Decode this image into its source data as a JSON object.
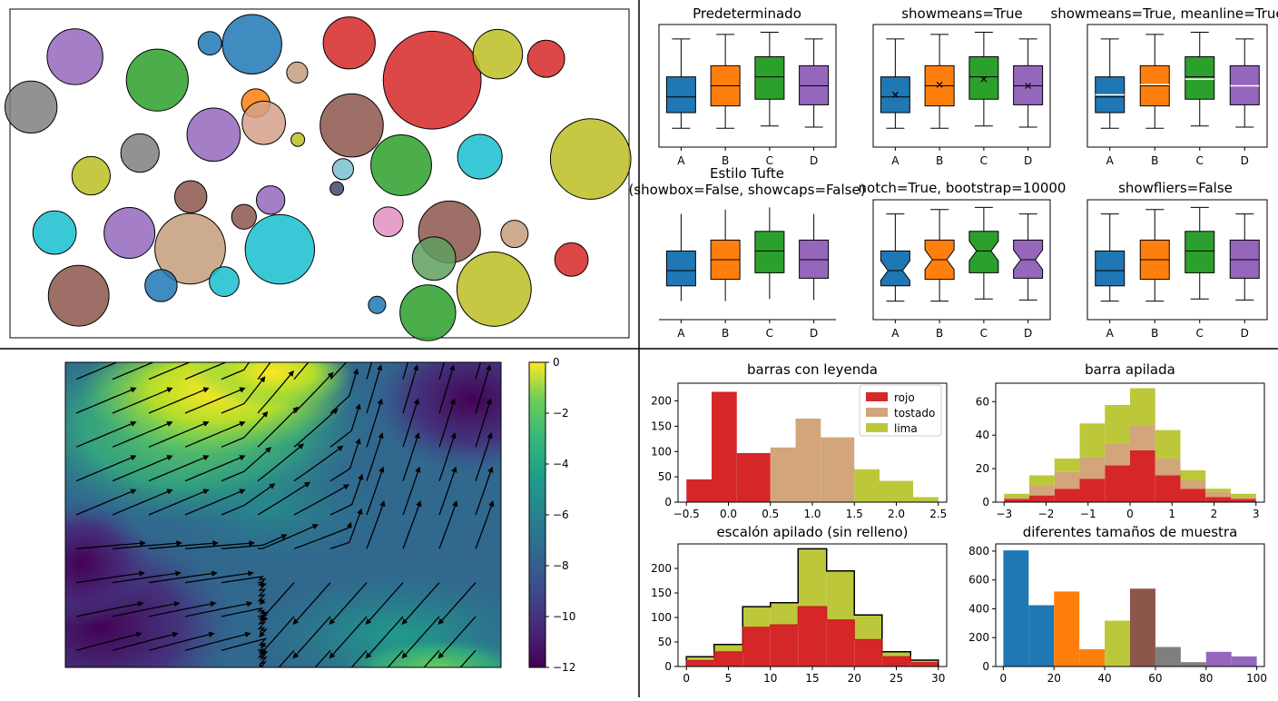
{
  "quadrant_dividers": true,
  "chart_data": [
    {
      "id": "bubbles",
      "type": "scatter",
      "description_kind": "packed-circles",
      "xlim": [
        0,
        100
      ],
      "ylim": [
        0,
        100
      ],
      "circles": [
        {
          "x": 10.5,
          "y": 85.5,
          "r": 4.5,
          "color": "#9467bd"
        },
        {
          "x": 3.4,
          "y": 70.2,
          "r": 4.2,
          "color": "#7f7f7f"
        },
        {
          "x": 32.3,
          "y": 89.6,
          "r": 1.9,
          "color": "#1f77b4"
        },
        {
          "x": 39.1,
          "y": 89.3,
          "r": 4.8,
          "color": "#1f77b4"
        },
        {
          "x": 23.8,
          "y": 78.4,
          "r": 5.0,
          "color": "#2ca02c"
        },
        {
          "x": 46.4,
          "y": 80.7,
          "r": 1.7,
          "color": "#c49c7a"
        },
        {
          "x": 54.8,
          "y": 89.7,
          "r": 4.2,
          "color": "#d62728"
        },
        {
          "x": 68.2,
          "y": 78.4,
          "r": 7.9,
          "color": "#d62728"
        },
        {
          "x": 78.8,
          "y": 86.3,
          "r": 4.0,
          "color": "#bcbd22"
        },
        {
          "x": 86.6,
          "y": 84.9,
          "r": 3.0,
          "color": "#d62728"
        },
        {
          "x": 39.7,
          "y": 71.4,
          "r": 2.3,
          "color": "#ff7f0e"
        },
        {
          "x": 41.0,
          "y": 65.4,
          "r": 3.5,
          "color": "#d4a088"
        },
        {
          "x": 32.9,
          "y": 61.8,
          "r": 4.3,
          "color": "#9467bd"
        },
        {
          "x": 55.2,
          "y": 64.6,
          "r": 5.1,
          "color": "#8c564b"
        },
        {
          "x": 46.5,
          "y": 60.3,
          "r": 1.1,
          "color": "#bcbd22"
        },
        {
          "x": 21.0,
          "y": 56.2,
          "r": 3.1,
          "color": "#7f7f7f"
        },
        {
          "x": 93.8,
          "y": 54.4,
          "r": 6.5,
          "color": "#bcbd22"
        },
        {
          "x": 75.9,
          "y": 55.1,
          "r": 3.6,
          "color": "#17becf"
        },
        {
          "x": 63.2,
          "y": 52.5,
          "r": 4.9,
          "color": "#2ca02c"
        },
        {
          "x": 53.8,
          "y": 51.3,
          "r": 1.7,
          "color": "#7bc0d0"
        },
        {
          "x": 13.1,
          "y": 49.3,
          "r": 3.1,
          "color": "#bcbd22"
        },
        {
          "x": 52.8,
          "y": 45.4,
          "r": 1.1,
          "color": "#3f4a66"
        },
        {
          "x": 29.2,
          "y": 42.9,
          "r": 2.6,
          "color": "#8c564b"
        },
        {
          "x": 42.1,
          "y": 41.9,
          "r": 2.3,
          "color": "#9467bd"
        },
        {
          "x": 7.2,
          "y": 32.0,
          "r": 3.5,
          "color": "#17becf"
        },
        {
          "x": 19.3,
          "y": 31.9,
          "r": 4.1,
          "color": "#9467bd"
        },
        {
          "x": 37.8,
          "y": 36.8,
          "r": 2.0,
          "color": "#8c564b"
        },
        {
          "x": 29.1,
          "y": 27.1,
          "r": 5.7,
          "color": "#c49c7a"
        },
        {
          "x": 43.6,
          "y": 26.9,
          "r": 5.6,
          "color": "#17becf"
        },
        {
          "x": 61.1,
          "y": 35.3,
          "r": 2.4,
          "color": "#e38fbf"
        },
        {
          "x": 71.0,
          "y": 32.2,
          "r": 5.0,
          "color": "#8c564b"
        },
        {
          "x": 81.5,
          "y": 31.6,
          "r": 2.2,
          "color": "#c49c7a"
        },
        {
          "x": 68.5,
          "y": 24.1,
          "r": 3.5,
          "color": "#5f9f5f"
        },
        {
          "x": 90.7,
          "y": 23.8,
          "r": 2.7,
          "color": "#d62728"
        },
        {
          "x": 11.1,
          "y": 12.8,
          "r": 4.9,
          "color": "#8c564b"
        },
        {
          "x": 24.4,
          "y": 15.9,
          "r": 2.6,
          "color": "#1f77b4"
        },
        {
          "x": 34.6,
          "y": 17.1,
          "r": 2.4,
          "color": "#17becf"
        },
        {
          "x": 78.2,
          "y": 14.8,
          "r": 6.0,
          "color": "#bcbd22"
        },
        {
          "x": 67.5,
          "y": 7.6,
          "r": 4.5,
          "color": "#2ca02c"
        },
        {
          "x": 59.3,
          "y": 10.0,
          "r": 1.4,
          "color": "#1f77b4"
        }
      ]
    },
    {
      "id": "boxplots",
      "type": "box",
      "categories": [
        "A",
        "B",
        "C",
        "D"
      ],
      "colors": [
        "#1f77b4",
        "#ff7f0e",
        "#2ca02c",
        "#9467bd"
      ],
      "ylim": [
        0,
        10
      ],
      "stats": [
        {
          "whislo": 1.2,
          "q1": 2.6,
          "med": 4.0,
          "q3": 5.8,
          "whishi": 9.2,
          "mean": 4.2
        },
        {
          "whislo": 1.2,
          "q1": 3.2,
          "med": 5.0,
          "q3": 6.8,
          "whishi": 9.6,
          "mean": 5.1
        },
        {
          "whislo": 1.4,
          "q1": 3.8,
          "med": 5.8,
          "q3": 7.6,
          "whishi": 9.8,
          "mean": 5.6
        },
        {
          "whislo": 1.3,
          "q1": 3.3,
          "med": 5.0,
          "q3": 6.8,
          "whishi": 9.2,
          "mean": 5.0
        }
      ],
      "panels": [
        {
          "title": "Predeterminado",
          "variant": "default"
        },
        {
          "title": "showmeans=True",
          "variant": "showmeans"
        },
        {
          "title": "showmeans=True, meanline=True",
          "variant": "meanline"
        },
        {
          "title": "Estilo Tufte",
          "title2": "(showbox=False, showcaps=False)",
          "variant": "tufte"
        },
        {
          "title": "notch=True, bootstrap=10000",
          "variant": "notch"
        },
        {
          "title": "showfliers=False",
          "variant": "nofliers"
        }
      ]
    },
    {
      "id": "streamplot",
      "type": "heatmap",
      "colormap": "viridis",
      "colorbar_ticks": [
        "0",
        "−2",
        "−4",
        "−6",
        "−8",
        "−10",
        "−12"
      ],
      "colorbar_range": [
        -12,
        0
      ]
    },
    {
      "id": "hist_legend",
      "type": "bar",
      "title": "barras con leyenda",
      "xticks": [
        "−0.5",
        "0.0",
        "0.5",
        "1.0",
        "1.5",
        "2.0",
        "2.5"
      ],
      "xlim": [
        -0.6,
        2.6
      ],
      "yticks": [
        "0",
        "50",
        "100",
        "150",
        "200"
      ],
      "ylim": [
        0,
        235
      ],
      "bars": [
        {
          "x0": -0.5,
          "x1": -0.2,
          "v": 45,
          "color": "#d62728"
        },
        {
          "x0": -0.2,
          "x1": 0.1,
          "v": 218,
          "color": "#d62728"
        },
        {
          "x0": 0.1,
          "x1": 0.5,
          "v": 97,
          "color": "#d62728"
        },
        {
          "x0": 0.5,
          "x1": 0.8,
          "v": 108,
          "color": "#d2a57a"
        },
        {
          "x0": 0.8,
          "x1": 1.1,
          "v": 165,
          "color": "#d2a57a"
        },
        {
          "x0": 1.1,
          "x1": 1.5,
          "v": 128,
          "color": "#d2a57a"
        },
        {
          "x0": 1.5,
          "x1": 1.8,
          "v": 65,
          "color": "#bcc83a"
        },
        {
          "x0": 1.8,
          "x1": 2.2,
          "v": 42,
          "color": "#bcc83a"
        },
        {
          "x0": 2.2,
          "x1": 2.5,
          "v": 10,
          "color": "#bcc83a"
        }
      ],
      "legend": [
        {
          "label": "rojo",
          "color": "#d62728"
        },
        {
          "label": "tostado",
          "color": "#d2a57a"
        },
        {
          "label": "lima",
          "color": "#bcc83a"
        }
      ]
    },
    {
      "id": "hist_stacked",
      "type": "bar",
      "title": "barra apilada",
      "xticks": [
        "−3",
        "−2",
        "−1",
        "0",
        "1",
        "2",
        "3"
      ],
      "xlim": [
        -3.2,
        3.2
      ],
      "yticks": [
        "0",
        "20",
        "40",
        "60"
      ],
      "ylim": [
        0,
        71
      ],
      "bin_edges": [
        -3.0,
        -2.4,
        -1.8,
        -1.2,
        -0.6,
        0.0,
        0.6,
        1.2,
        1.8,
        2.4,
        3.0
      ],
      "series": [
        {
          "name": "rojo",
          "color": "#d62728",
          "values": [
            2,
            4,
            8,
            14,
            22,
            31,
            16,
            8,
            3,
            2
          ]
        },
        {
          "name": "tostado",
          "color": "#d2a57a",
          "values": [
            1,
            6,
            10,
            13,
            13,
            15,
            10,
            5,
            3,
            1
          ]
        },
        {
          "name": "lima",
          "color": "#bcc83a",
          "values": [
            2,
            6,
            8,
            20,
            23,
            22,
            17,
            6,
            2,
            2
          ]
        }
      ]
    },
    {
      "id": "hist_step",
      "type": "area",
      "title": "escalón apilado (sin relleno)",
      "xticks": [
        "0",
        "5",
        "10",
        "15",
        "20",
        "25",
        "30"
      ],
      "xlim": [
        -1,
        31
      ],
      "yticks": [
        "0",
        "50",
        "100",
        "150",
        "200"
      ],
      "ylim": [
        0,
        250
      ],
      "bin_edges": [
        0,
        3.3,
        6.7,
        10,
        13.3,
        16.7,
        20,
        23.3,
        26.7,
        30
      ],
      "series": [
        {
          "name": "rojo",
          "color": "#d62728",
          "values": [
            12,
            30,
            80,
            85,
            122,
            95,
            55,
            20,
            8
          ]
        },
        {
          "name": "lima",
          "color": "#bcc83a",
          "values": [
            8,
            15,
            42,
            45,
            118,
            100,
            50,
            10,
            5
          ]
        }
      ]
    },
    {
      "id": "hist_sizes",
      "type": "bar",
      "title": "diferentes tamaños de muestra",
      "xticks": [
        "0",
        "20",
        "40",
        "60",
        "80",
        "100"
      ],
      "xlim": [
        -3,
        103
      ],
      "yticks": [
        "0",
        "200",
        "400",
        "600",
        "800"
      ],
      "ylim": [
        0,
        850
      ],
      "bars": [
        {
          "x0": 0,
          "x1": 10,
          "v": 805,
          "color": "#1f77b4"
        },
        {
          "x0": 10,
          "x1": 20,
          "v": 425,
          "color": "#1f77b4"
        },
        {
          "x0": 20,
          "x1": 30,
          "v": 520,
          "color": "#ff7f0e"
        },
        {
          "x0": 30,
          "x1": 40,
          "v": 120,
          "color": "#ff7f0e"
        },
        {
          "x0": 40,
          "x1": 50,
          "v": 318,
          "color": "#bcc83a"
        },
        {
          "x0": 50,
          "x1": 60,
          "v": 540,
          "color": "#8c564b"
        },
        {
          "x0": 60,
          "x1": 70,
          "v": 135,
          "color": "#7f7f7f"
        },
        {
          "x0": 70,
          "x1": 80,
          "v": 30,
          "color": "#7f7f7f"
        },
        {
          "x0": 80,
          "x1": 90,
          "v": 102,
          "color": "#9467bd"
        },
        {
          "x0": 90,
          "x1": 100,
          "v": 70,
          "color": "#9467bd"
        }
      ]
    }
  ]
}
